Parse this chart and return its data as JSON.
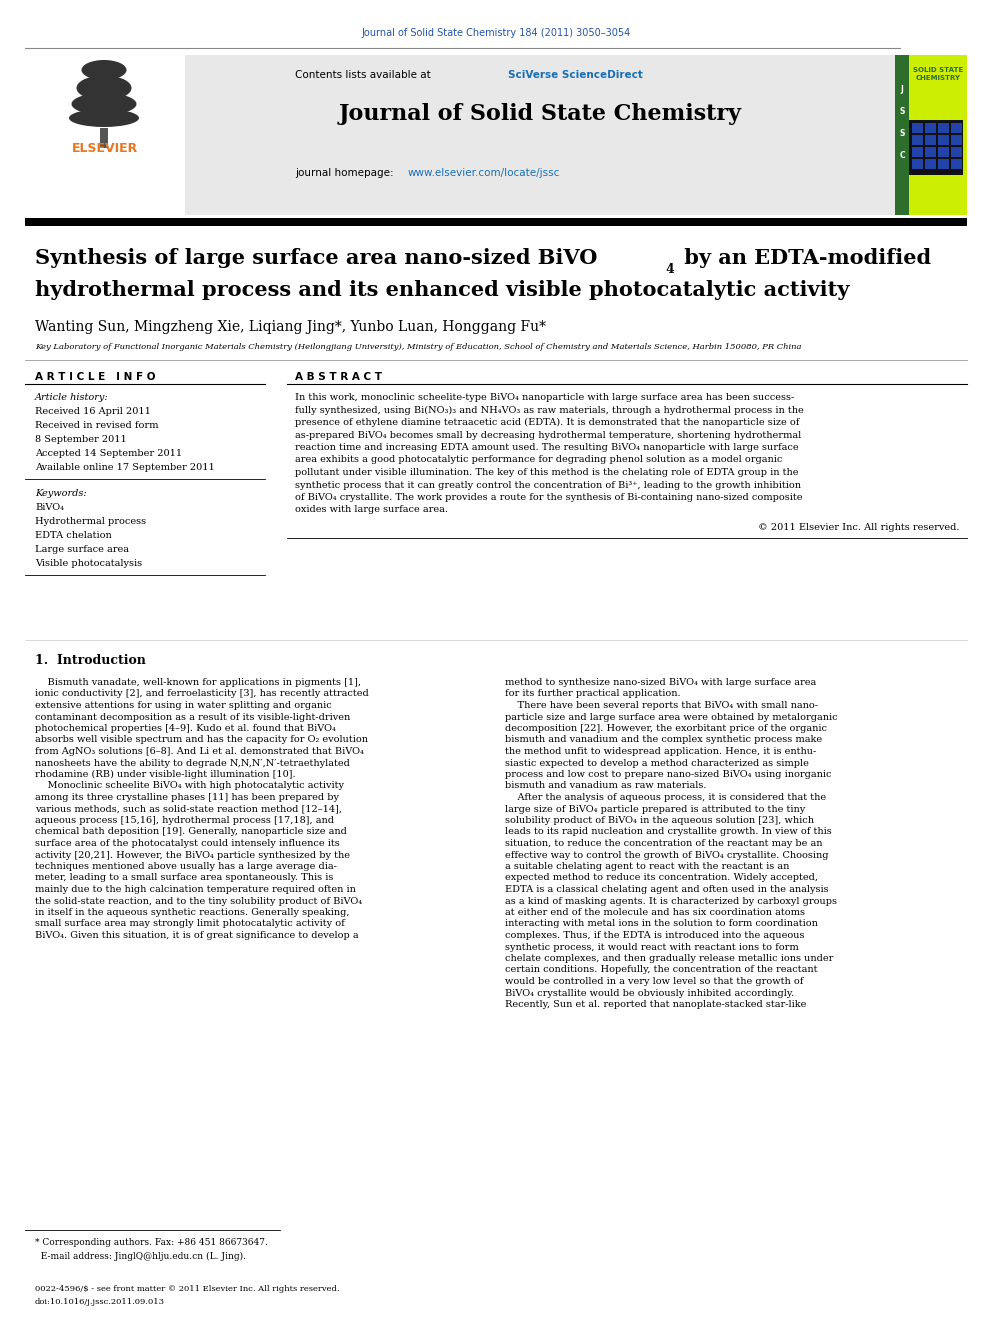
{
  "page_width": 9.92,
  "page_height": 13.23,
  "dpi": 100,
  "background_color": "#ffffff",
  "top_journal_ref": "Journal of Solid State Chemistry 184 (2011) 3050–3054",
  "top_journal_color": "#2255aa",
  "header_bg": "#e8e8e8",
  "sciverse_color": "#1a6eb5",
  "journal_title": "Journal of Solid State Chemistry",
  "homepage_color": "#1a6eb5",
  "authors": "Wanting Sun, Mingzheng Xie, Liqiang Jing*, Yunbo Luan, Honggang Fu*",
  "affiliation": "Key Laboratory of Functional Inorganic Materials Chemistry (Heilongjiang University), Ministry of Education, School of Chemistry and Materials Science, Harbin 150080, PR China",
  "article_info_header": "A R T I C L E   I N F O",
  "abstract_header": "A B S T R A C T",
  "article_history_label": "Article history:",
  "received1": "Received 16 April 2011",
  "revised_label": "Received in revised form",
  "received2": "8 September 2011",
  "accepted": "Accepted 14 September 2011",
  "available": "Available online 17 September 2011",
  "keywords_label": "Keywords:",
  "keywords": [
    "BiVO₄",
    "Hydrothermal process",
    "EDTA chelation",
    "Large surface area",
    "Visible photocatalysis"
  ],
  "copyright": "© 2011 Elsevier Inc. All rights reserved.",
  "footnote_line1": "* Corresponding authors. Fax: +86 451 86673647.",
  "footnote_line2": "  E-mail address: JinglQ@hlju.edu.cn (L. Jing).",
  "footer_text1": "0022-4596/$ - see front matter © 2011 Elsevier Inc. All rights reserved.",
  "footer_text2": "doi:10.1016/j.jssc.2011.09.013",
  "elsevier_color": "#e87722",
  "green_cover_color": "#ccee00",
  "dark_green_strip": "#2d6e2d",
  "cover_title1": "SOLID STATE",
  "cover_title2": "CHEMISTRY",
  "abstract_lines": [
    "In this work, monoclinic scheelite-type BiVO₄ nanoparticle with large surface area has been success-",
    "fully synthesized, using Bi(NO₃)₃ and NH₄VO₃ as raw materials, through a hydrothermal process in the",
    "presence of ethylene diamine tetraacetic acid (EDTA). It is demonstrated that the nanoparticle size of",
    "as-prepared BiVO₄ becomes small by decreasing hydrothermal temperature, shortening hydrothermal",
    "reaction time and increasing EDTA amount used. The resulting BiVO₄ nanoparticle with large surface",
    "area exhibits a good photocatalytic performance for degrading phenol solution as a model organic",
    "pollutant under visible illumination. The key of this method is the chelating role of EDTA group in the",
    "synthetic process that it can greatly control the concentration of Bi³⁺, leading to the growth inhibition",
    "of BiVO₄ crystallite. The work provides a route for the synthesis of Bi-containing nano-sized composite",
    "oxides with large surface area."
  ],
  "intro_col1_lines": [
    "    Bismuth vanadate, well-known for applications in pigments [1],",
    "ionic conductivity [2], and ferroelasticity [3], has recently attracted",
    "extensive attentions for using in water splitting and organic",
    "contaminant decomposition as a result of its visible-light-driven",
    "photochemical properties [4–9]. Kudo et al. found that BiVO₄",
    "absorbs well visible spectrum and has the capacity for O₂ evolution",
    "from AgNO₃ solutions [6–8]. And Li et al. demonstrated that BiVO₄",
    "nanosheets have the ability to degrade N,N,N′,N′-tetraethylated",
    "rhodamine (RB) under visible-light illumination [10].",
    "    Monoclinic scheelite BiVO₄ with high photocatalytic activity",
    "among its three crystalline phases [11] has been prepared by",
    "various methods, such as solid-state reaction method [12–14],",
    "aqueous process [15,16], hydrothermal process [17,18], and",
    "chemical bath deposition [19]. Generally, nanoparticle size and",
    "surface area of the photocatalyst could intensely influence its",
    "activity [20,21]. However, the BiVO₄ particle synthesized by the",
    "techniques mentioned above usually has a large average dia-",
    "meter, leading to a small surface area spontaneously. This is",
    "mainly due to the high calcination temperature required often in",
    "the solid-state reaction, and to the tiny solubility product of BiVO₄",
    "in itself in the aqueous synthetic reactions. Generally speaking,",
    "small surface area may strongly limit photocatalytic activity of",
    "BiVO₄. Given this situation, it is of great significance to develop a"
  ],
  "intro_col2_lines": [
    "method to synthesize nano-sized BiVO₄ with large surface area",
    "for its further practical application.",
    "    There have been several reports that BiVO₄ with small nano-",
    "particle size and large surface area were obtained by metalorganic",
    "decomposition [22]. However, the exorbitant price of the organic",
    "bismuth and vanadium and the complex synthetic process make",
    "the method unfit to widespread application. Hence, it is enthu-",
    "siastic expected to develop a method characterized as simple",
    "process and low cost to prepare nano-sized BiVO₄ using inorganic",
    "bismuth and vanadium as raw materials.",
    "    After the analysis of aqueous process, it is considered that the",
    "large size of BiVO₄ particle prepared is attributed to the tiny",
    "solubility product of BiVO₄ in the aqueous solution [23], which",
    "leads to its rapid nucleation and crystallite growth. In view of this",
    "situation, to reduce the concentration of the reactant may be an",
    "effective way to control the growth of BiVO₄ crystallite. Choosing",
    "a suitable chelating agent to react with the reactant is an",
    "expected method to reduce its concentration. Widely accepted,",
    "EDTA is a classical chelating agent and often used in the analysis",
    "as a kind of masking agents. It is characterized by carboxyl groups",
    "at either end of the molecule and has six coordination atoms",
    "interacting with metal ions in the solution to form coordination",
    "complexes. Thus, if the EDTA is introduced into the aqueous",
    "synthetic process, it would react with reactant ions to form",
    "chelate complexes, and then gradually release metallic ions under",
    "certain conditions. Hopefully, the concentration of the reactant",
    "would be controlled in a very low level so that the growth of",
    "BiVO₄ crystallite would be obviously inhibited accordingly.",
    "Recently, Sun et al. reported that nanoplate-stacked star-like"
  ]
}
